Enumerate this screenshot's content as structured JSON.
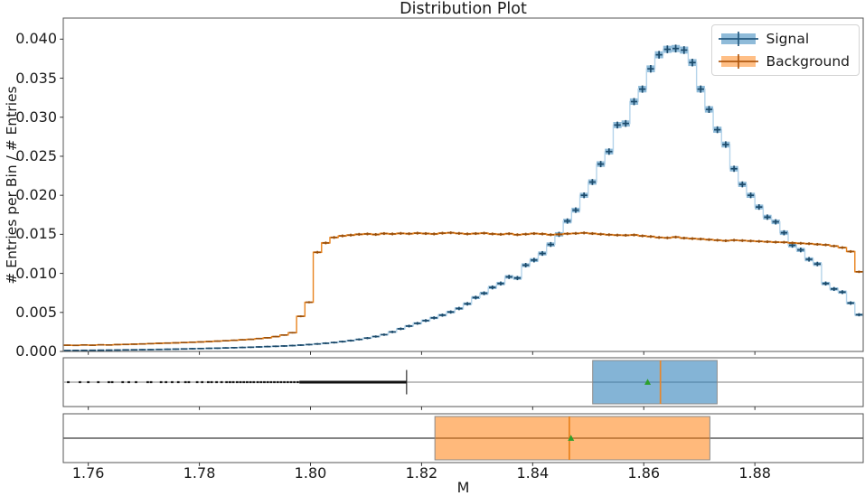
{
  "chart_data": {
    "type": "histogram-step-errorbar-with-boxplots",
    "title": "Distribution Plot",
    "xlabel": "M",
    "ylabel": "# Entries per Bin / # Entries",
    "xlim": [
      1.7555,
      1.8995
    ],
    "ylim": [
      0,
      0.0427
    ],
    "grid": false,
    "legend_position": "upper right",
    "axes": {
      "xtick_values": [
        1.76,
        1.78,
        1.8,
        1.82,
        1.84,
        1.86,
        1.88
      ],
      "xtick_labels": [
        "1.76",
        "1.78",
        "1.80",
        "1.82",
        "1.84",
        "1.86",
        "1.88"
      ],
      "ytick_values": [
        0.0,
        0.005,
        0.01,
        0.015,
        0.02,
        0.025,
        0.03,
        0.035,
        0.04
      ],
      "ytick_labels": [
        "0.000",
        "0.005",
        "0.010",
        "0.015",
        "0.020",
        "0.025",
        "0.030",
        "0.035",
        "0.040"
      ]
    },
    "bins": {
      "start": 1.7555,
      "width": 0.0015,
      "count": 96
    },
    "series": [
      {
        "name": "Signal",
        "step_color": "#b5d4ea",
        "marker_color": "#1b4a6b",
        "band_color": "rgba(31,119,180,0.5)",
        "err_coeff": 0.0023,
        "values": [
          0.00012,
          0.00013,
          0.00014,
          0.00015,
          0.00016,
          0.00017,
          0.00018,
          0.0002,
          0.00021,
          0.00023,
          0.00024,
          0.00026,
          0.00028,
          0.0003,
          0.00032,
          0.00035,
          0.00037,
          0.0004,
          0.00042,
          0.00045,
          0.00048,
          0.00051,
          0.00054,
          0.00058,
          0.00062,
          0.00066,
          0.0007,
          0.00075,
          0.00081,
          0.00088,
          0.00096,
          0.00105,
          0.00114,
          0.00126,
          0.00139,
          0.00154,
          0.00171,
          0.00191,
          0.00215,
          0.0025,
          0.0029,
          0.00325,
          0.0036,
          0.00395,
          0.0043,
          0.00465,
          0.00505,
          0.0055,
          0.0061,
          0.0069,
          0.00745,
          0.0082,
          0.0087,
          0.00955,
          0.0094,
          0.01105,
          0.0117,
          0.01255,
          0.0137,
          0.015,
          0.0167,
          0.0181,
          0.02,
          0.0217,
          0.024,
          0.0256,
          0.029,
          0.0292,
          0.032,
          0.0336,
          0.0362,
          0.038,
          0.0387,
          0.0388,
          0.0386,
          0.037,
          0.0336,
          0.031,
          0.0284,
          0.0265,
          0.0234,
          0.0214,
          0.02,
          0.0185,
          0.0172,
          0.0166,
          0.0152,
          0.0136,
          0.013,
          0.0118,
          0.0112,
          0.0087,
          0.008,
          0.0076,
          0.0062,
          0.0047
        ]
      },
      {
        "name": "Background",
        "step_color": "#e8831d",
        "marker_color": "#9b4f08",
        "band_color": "rgba(255,127,14,0.38)",
        "err_coeff": 0.0011,
        "values": [
          0.0008,
          0.00078,
          0.00083,
          0.0008,
          0.00085,
          0.00083,
          0.00088,
          0.0009,
          0.00093,
          0.00096,
          0.001,
          0.00104,
          0.00107,
          0.0011,
          0.00114,
          0.00118,
          0.00122,
          0.00127,
          0.00132,
          0.00137,
          0.00143,
          0.00149,
          0.00155,
          0.00165,
          0.00175,
          0.0019,
          0.0021,
          0.0024,
          0.0045,
          0.0063,
          0.0127,
          0.0139,
          0.0146,
          0.0148,
          0.0149,
          0.015,
          0.01505,
          0.01498,
          0.0151,
          0.01505,
          0.01512,
          0.01508,
          0.01515,
          0.0151,
          0.01505,
          0.01515,
          0.0152,
          0.01512,
          0.01505,
          0.0151,
          0.01515,
          0.01505,
          0.015,
          0.01508,
          0.01495,
          0.01502,
          0.0151,
          0.01505,
          0.01495,
          0.015,
          0.01508,
          0.01512,
          0.01518,
          0.0151,
          0.01502,
          0.01495,
          0.0149,
          0.01488,
          0.01492,
          0.0148,
          0.01472,
          0.0146,
          0.01455,
          0.01465,
          0.01452,
          0.01445,
          0.0144,
          0.01432,
          0.01425,
          0.01418,
          0.01425,
          0.0142,
          0.01415,
          0.0141,
          0.01405,
          0.014,
          0.01398,
          0.0139,
          0.01385,
          0.0138,
          0.01372,
          0.01365,
          0.0135,
          0.0133,
          0.0128,
          0.0102
        ]
      }
    ],
    "boxplots": [
      {
        "name": "Signal",
        "box_fill": "rgba(31,119,180,0.55)",
        "box_edge": "#8a8a8a",
        "q1": 1.8508,
        "median": 1.863,
        "q3": 1.8732,
        "mean": 1.8607,
        "whisker_low": 1.8173,
        "whisker_low_cap": true,
        "whisker_high": 1.8995,
        "whisker_high_cap": false,
        "whisker_color": "#aaaaaa",
        "median_color": "#e8872c",
        "mean_marker": "triangle",
        "mean_marker_color": "#2ca02c",
        "flier_color": "#1a1a1a",
        "fliers": [
          1.7564,
          1.7585,
          1.76,
          1.7618,
          1.7637,
          1.7643,
          1.7662,
          1.7673,
          1.7686,
          1.7707,
          1.7713,
          1.7731,
          1.774,
          1.7751,
          1.7762,
          1.7775,
          1.7781,
          1.7796,
          1.7805,
          1.7816,
          1.7822,
          1.7831,
          1.784,
          1.7849,
          1.7855,
          1.7861,
          1.7868,
          1.7874,
          1.788,
          1.7886,
          1.7892,
          1.7898,
          1.7905,
          1.7911,
          1.7917,
          1.7923,
          1.7929,
          1.7935,
          1.7941,
          1.7947,
          1.7953,
          1.7959,
          1.7965,
          1.7971,
          1.7977
        ],
        "flier_solid": [
          1.798,
          1.8173
        ]
      },
      {
        "name": "Background",
        "box_fill": "rgba(255,127,14,0.55)",
        "box_edge": "#8a8a8a",
        "q1": 1.8224,
        "median": 1.8466,
        "q3": 1.8719,
        "mean": 1.8469,
        "whisker_low": 1.7555,
        "whisker_low_cap": false,
        "whisker_high": 1.8995,
        "whisker_high_cap": false,
        "whisker_color": "#5a5a5a",
        "median_color": "#e8821e",
        "mean_marker": "triangle",
        "mean_marker_color": "#2ca02c",
        "flier_color": "#1a1a1a",
        "fliers": [],
        "flier_solid": null
      }
    ]
  },
  "legend": {
    "items": [
      {
        "label": "Signal",
        "patch_color": "rgba(31,119,180,0.5)",
        "cross_color": "#24597f"
      },
      {
        "label": "Background",
        "patch_color": "rgba(255,127,14,0.5)",
        "cross_color": "#b05912"
      }
    ]
  }
}
